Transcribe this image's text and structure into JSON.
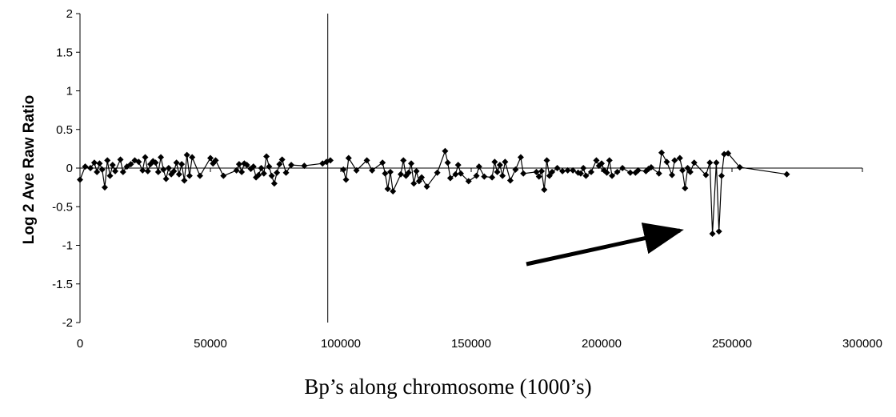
{
  "chart_data": {
    "type": "scatter",
    "title": "",
    "xlabel": "Bp’s along chromosome (1000’s)",
    "ylabel": "Log 2 Ave Raw Ratio",
    "xlim": [
      0,
      300000
    ],
    "ylim": [
      -2,
      2
    ],
    "x_ticks": [
      "0",
      "50000",
      "100000",
      "150000",
      "200000",
      "250000",
      "300000"
    ],
    "y_ticks": [
      "2",
      "1.5",
      "1",
      "0.5",
      "0",
      "-0.5",
      "-1",
      "-1.5",
      "-2"
    ],
    "vertical_reference_x": 95000,
    "annotation": "arrow pointing toward dip near 243000",
    "series": [
      {
        "marker": "diamond",
        "color": "#000000",
        "connected": true,
        "segments": [
          [
            [
              0,
              -0.15
            ],
            [
              2000,
              0.02
            ],
            [
              4000,
              0
            ],
            [
              5500,
              0.07
            ],
            [
              6500,
              -0.05
            ],
            [
              7500,
              0.06
            ],
            [
              8500,
              -0.02
            ],
            [
              9500,
              -0.25
            ],
            [
              10500,
              0.1
            ],
            [
              11500,
              -0.1
            ],
            [
              12500,
              0.04
            ],
            [
              13500,
              -0.04
            ],
            [
              15500,
              0.11
            ],
            [
              16500,
              -0.05
            ],
            [
              18000,
              0.02
            ],
            [
              19500,
              0.05
            ],
            [
              21000,
              0.1
            ],
            [
              22500,
              0.08
            ],
            [
              24000,
              -0.03
            ],
            [
              25000,
              0.14
            ],
            [
              26000,
              -0.04
            ],
            [
              27000,
              0.05
            ],
            [
              28000,
              0.09
            ],
            [
              29000,
              0.07
            ],
            [
              30000,
              -0.05
            ],
            [
              31000,
              0.14
            ],
            [
              32000,
              -0.02
            ],
            [
              33000,
              -0.14
            ],
            [
              34000,
              0
            ],
            [
              35000,
              -0.08
            ],
            [
              36000,
              -0.04
            ],
            [
              37000,
              0.07
            ],
            [
              38000,
              -0.08
            ],
            [
              39000,
              0.05
            ],
            [
              40000,
              -0.16
            ],
            [
              41000,
              0.17
            ],
            [
              42000,
              -0.1
            ],
            [
              43000,
              0.14
            ],
            [
              46000,
              -0.1
            ],
            [
              50000,
              0.13
            ],
            [
              51000,
              0.06
            ],
            [
              52000,
              0.1
            ],
            [
              55000,
              -0.1
            ],
            [
              60000,
              -0.03
            ],
            [
              61000,
              0.05
            ],
            [
              62000,
              -0.05
            ],
            [
              63000,
              0.06
            ],
            [
              64000,
              0.04
            ],
            [
              65500,
              -0.01
            ],
            [
              66500,
              0.02
            ],
            [
              67500,
              -0.12
            ],
            [
              68500,
              -0.09
            ],
            [
              69500,
              0
            ],
            [
              70500,
              -0.07
            ],
            [
              71500,
              0.15
            ],
            [
              72500,
              0.02
            ],
            [
              73500,
              -0.1
            ],
            [
              74500,
              -0.2
            ],
            [
              75500,
              -0.06
            ],
            [
              76500,
              0.05
            ],
            [
              77500,
              0.11
            ],
            [
              79000,
              -0.06
            ],
            [
              81000,
              0.04
            ],
            [
              86000,
              0.03
            ],
            [
              93000,
              0.06
            ],
            [
              94500,
              0.08
            ],
            [
              96000,
              0.1
            ]
          ],
          [
            [
              101000,
              -0.02
            ],
            [
              102000,
              -0.15
            ],
            [
              103000,
              0.13
            ],
            [
              106000,
              -0.03
            ],
            [
              110000,
              0.1
            ],
            [
              112000,
              -0.03
            ],
            [
              116000,
              0.07
            ],
            [
              117000,
              -0.07
            ],
            [
              118000,
              -0.27
            ],
            [
              119000,
              -0.05
            ],
            [
              120000,
              -0.3
            ],
            [
              123000,
              -0.08
            ],
            [
              124000,
              0.1
            ],
            [
              125000,
              -0.1
            ],
            [
              126000,
              -0.06
            ],
            [
              127000,
              0.06
            ],
            [
              128000,
              -0.2
            ],
            [
              129000,
              -0.04
            ],
            [
              130000,
              -0.17
            ],
            [
              131000,
              -0.12
            ],
            [
              133000,
              -0.24
            ],
            [
              137000,
              -0.06
            ],
            [
              140000,
              0.22
            ],
            [
              141000,
              0.07
            ],
            [
              142000,
              -0.13
            ],
            [
              144000,
              -0.08
            ],
            [
              145000,
              0.04
            ],
            [
              146000,
              -0.07
            ],
            [
              149000,
              -0.17
            ],
            [
              152000,
              -0.1
            ],
            [
              153000,
              0.02
            ],
            [
              155000,
              -0.11
            ],
            [
              158000,
              -0.12
            ],
            [
              159000,
              0.08
            ],
            [
              160000,
              -0.05
            ],
            [
              161000,
              0.04
            ],
            [
              162000,
              -0.1
            ],
            [
              163000,
              0.08
            ],
            [
              165000,
              -0.16
            ],
            [
              167000,
              -0.02
            ],
            [
              169000,
              0.14
            ],
            [
              170000,
              -0.07
            ],
            [
              175000,
              -0.05
            ],
            [
              176000,
              -0.11
            ],
            [
              177000,
              -0.04
            ],
            [
              178000,
              -0.28
            ],
            [
              179000,
              0.1
            ],
            [
              180000,
              -0.1
            ],
            [
              181000,
              -0.05
            ],
            [
              183000,
              0
            ],
            [
              185000,
              -0.04
            ],
            [
              187000,
              -0.03
            ],
            [
              189000,
              -0.03
            ],
            [
              191000,
              -0.06
            ],
            [
              192000,
              -0.07
            ],
            [
              193000,
              0
            ],
            [
              194000,
              -0.1
            ],
            [
              196000,
              -0.05
            ],
            [
              198000,
              0.1
            ],
            [
              199000,
              0.03
            ],
            [
              200000,
              0.06
            ],
            [
              201000,
              -0.03
            ],
            [
              202000,
              -0.06
            ],
            [
              203000,
              0.1
            ],
            [
              204000,
              -0.1
            ],
            [
              206000,
              -0.05
            ],
            [
              208000,
              0
            ],
            [
              211000,
              -0.06
            ],
            [
              213000,
              -0.06
            ],
            [
              214000,
              -0.03
            ],
            [
              217000,
              -0.04
            ],
            [
              218000,
              -0.01
            ],
            [
              219000,
              0.01
            ],
            [
              222000,
              -0.07
            ],
            [
              223000,
              0.2
            ],
            [
              225000,
              0.08
            ],
            [
              227000,
              -0.09
            ],
            [
              228000,
              0.1
            ],
            [
              230000,
              0.13
            ],
            [
              231000,
              -0.03
            ],
            [
              232000,
              -0.26
            ],
            [
              233000,
              0
            ],
            [
              234000,
              -0.05
            ],
            [
              235500,
              0.07
            ],
            [
              240000,
              -0.09
            ],
            [
              241500,
              0.07
            ],
            [
              242500,
              -0.85
            ],
            [
              244000,
              0.07
            ],
            [
              245000,
              -0.82
            ],
            [
              246000,
              -0.1
            ],
            [
              247000,
              0.18
            ],
            [
              248500,
              0.19
            ],
            [
              253000,
              0.01
            ],
            [
              271000,
              -0.08
            ]
          ]
        ]
      }
    ]
  }
}
